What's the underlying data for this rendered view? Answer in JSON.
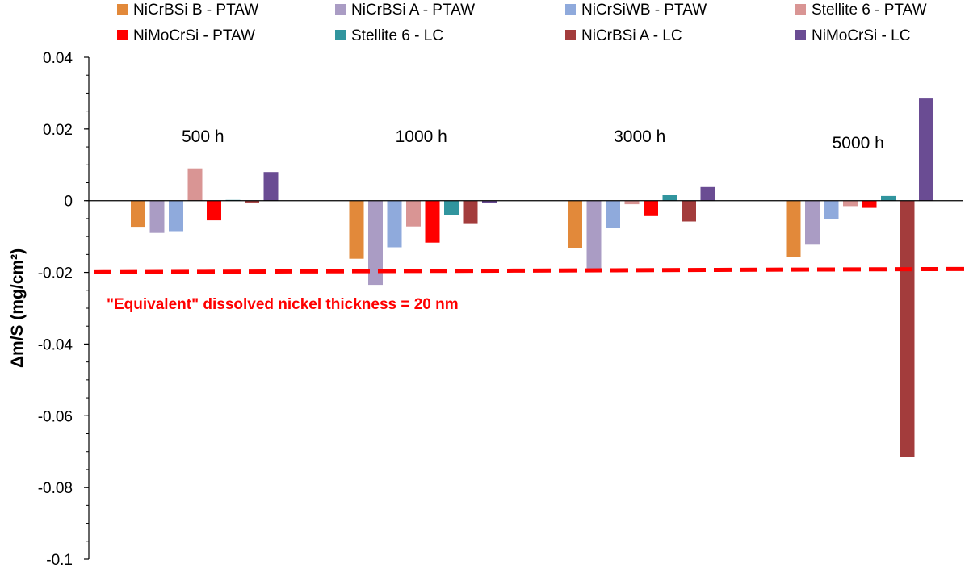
{
  "chart_data": {
    "type": "bar",
    "categories": [
      "500 h",
      "1000 h",
      "3000 h",
      "5000 h"
    ],
    "series": [
      {
        "name": "NiCrBSi B - PTAW",
        "color": "#E2893A",
        "values": [
          -0.0073,
          -0.0162,
          -0.0133,
          -0.0157
        ]
      },
      {
        "name": "NiCrBSi A - PTAW",
        "color": "#AA9CC4",
        "values": [
          -0.009,
          -0.0235,
          -0.0192,
          -0.0123
        ]
      },
      {
        "name": "NiCrSiWB - PTAW",
        "color": "#8FAADC",
        "values": [
          -0.0085,
          -0.013,
          -0.0077,
          -0.0052
        ]
      },
      {
        "name": "Stellite 6 - PTAW",
        "color": "#D99594",
        "values": [
          0.009,
          -0.0072,
          -0.001,
          -0.0015
        ]
      },
      {
        "name": "NiMoCrSi - PTAW",
        "color": "#FF0000",
        "values": [
          -0.0055,
          -0.0117,
          -0.0043,
          -0.002
        ]
      },
      {
        "name": "Stellite 6 - LC",
        "color": "#31959E",
        "values": [
          0.0002,
          -0.004,
          0.0015,
          0.0013
        ]
      },
      {
        "name": "NiCrBSi A - LC",
        "color": "#A33C3C",
        "values": [
          -0.0005,
          -0.0065,
          -0.0058,
          -0.0715
        ]
      },
      {
        "name": "NiMoCrSi - LC",
        "color": "#6A4C93",
        "values": [
          0.008,
          -0.0007,
          0.0038,
          0.0285
        ]
      }
    ],
    "title": "",
    "xlabel": "",
    "ylabel": "Δm/S (mg/cm²)",
    "ylim": [
      -0.1,
      0.04
    ],
    "yticks": [
      0.04,
      0.02,
      0,
      -0.02,
      -0.04,
      -0.06,
      -0.08,
      -0.1
    ],
    "ytick_labels": [
      "0.04",
      "0.02",
      "0",
      "-0.02",
      "-0.04",
      "-0.06",
      "-0.08",
      "-0.1"
    ],
    "grid": false,
    "legend": "top",
    "reference_line": {
      "value": -0.0195,
      "color": "#FF0000",
      "style": "dashed",
      "label": "\"Equivalent\"  dissolved nickel thickness = 20 nm"
    }
  }
}
